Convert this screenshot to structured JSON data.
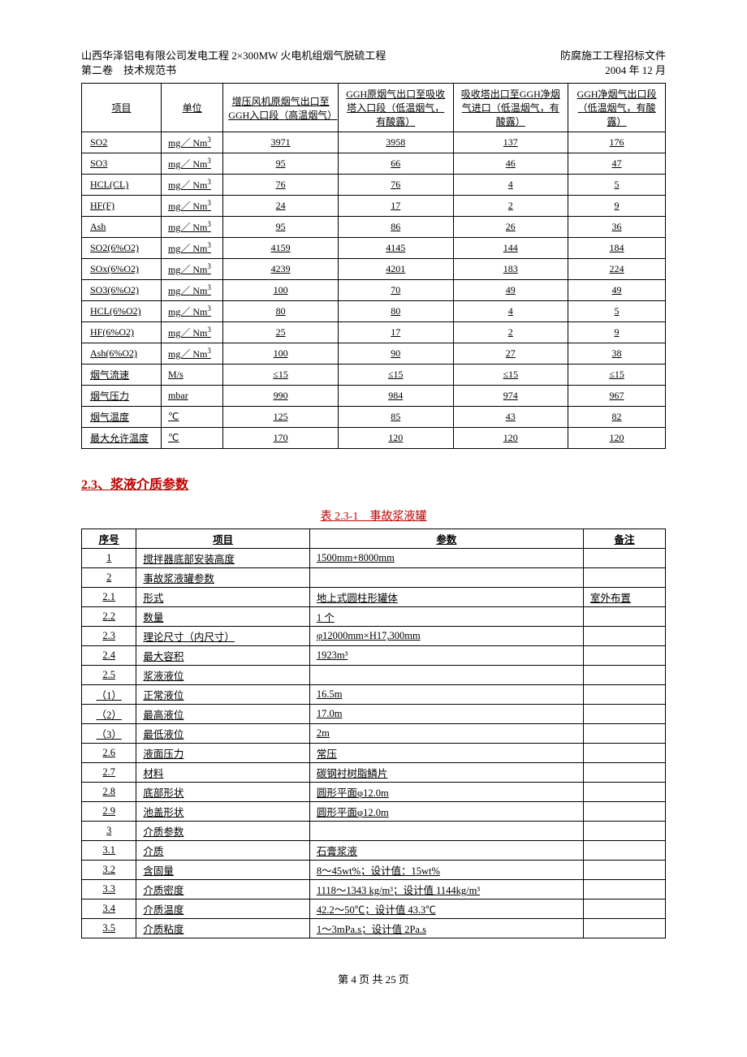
{
  "header": {
    "left_line1": "山西华泽铝电有限公司发电工程 2×300MW 火电机组烟气脱硫工程",
    "left_line2": "第二卷　技术规范书",
    "right_line1": "防腐施工工程招标文件",
    "right_line2": "2004 年 12 月"
  },
  "table1": {
    "headers": {
      "item": "项目",
      "unit": "单位",
      "col1": "增压风机原烟气出口至GGH入口段（高温烟气）",
      "col2": "GGH原烟气出口至吸收塔入口段（低温烟气，有酸露）",
      "col3": "吸收塔出口至GGH净烟气进口（低温烟气，有酸露）",
      "col4": "GGH净烟气出口段（低温烟气，有酸露）"
    },
    "unit_mgnm3": "mg／ Nm",
    "unit_ms": "M/s",
    "unit_mbar": "mbar",
    "unit_c": "℃",
    "rows": [
      {
        "item": "SO2",
        "unit": "mg／ Nm3",
        "v": [
          "3971",
          "3958",
          "137",
          "176"
        ]
      },
      {
        "item": "SO3",
        "unit": "mg／ Nm3",
        "v": [
          "95",
          "66",
          "46",
          "47"
        ]
      },
      {
        "item": "HCL(CL)",
        "unit": "mg／ Nm3",
        "v": [
          "76",
          "76",
          "4",
          "5"
        ]
      },
      {
        "item": "HF(F)",
        "unit": "mg／ Nm3",
        "v": [
          "24",
          "17",
          "2",
          "9"
        ]
      },
      {
        "item": "Ash",
        "unit": "mg／ Nm3",
        "v": [
          "95",
          "86",
          "26",
          "36"
        ]
      },
      {
        "item": "SO2(6%O2)",
        "unit": "mg／ Nm3",
        "v": [
          "4159",
          "4145",
          "144",
          "184"
        ]
      },
      {
        "item": "SOx(6%O2)",
        "unit": "mg／ Nm3",
        "v": [
          "4239",
          "4201",
          "183",
          "224"
        ]
      },
      {
        "item": "SO3(6%O2)",
        "unit": "mg／ Nm3",
        "v": [
          "100",
          "70",
          "49",
          "49"
        ]
      },
      {
        "item": "HCL(6%O2)",
        "unit": "mg／ Nm3",
        "v": [
          "80",
          "80",
          "4",
          "5"
        ]
      },
      {
        "item": "HF(6%O2)",
        "unit": "mg／ Nm3",
        "v": [
          "25",
          "17",
          "2",
          "9"
        ]
      },
      {
        "item": "Ash(6%O2)",
        "unit": "mg／ Nm3",
        "v": [
          "100",
          "90",
          "27",
          "38"
        ]
      },
      {
        "item": "烟气流速",
        "unit": "M/s",
        "v": [
          "≤15",
          "≤15",
          "≤15",
          "≤15"
        ]
      },
      {
        "item": "烟气压力",
        "unit": "mbar",
        "v": [
          "990",
          "984",
          "974",
          "967"
        ]
      },
      {
        "item": "烟气温度",
        "unit": "℃",
        "v": [
          "125",
          "85",
          "43",
          "82"
        ]
      },
      {
        "item": "最大允许温度",
        "unit": "℃",
        "v": [
          "170",
          "120",
          "120",
          "120"
        ]
      }
    ]
  },
  "section23": "2.3、浆液介质参数",
  "table2_caption": "表 2.3-1　事故浆液罐",
  "table2": {
    "headers": {
      "no": "序号",
      "item": "项目",
      "param": "参数",
      "note": "备注"
    },
    "rows": [
      {
        "no": "1",
        "item": "搅拌器底部安装高度",
        "param": "1500mm+8000mm",
        "note": ""
      },
      {
        "no": "2",
        "item": "事故浆液罐参数",
        "param": "",
        "note": ""
      },
      {
        "no": "2.1",
        "item": "形式",
        "param": "地上式圆柱形罐体",
        "note": "室外布置"
      },
      {
        "no": "2.2",
        "item": "数量",
        "param": "1 个",
        "note": ""
      },
      {
        "no": "2.3",
        "item": "理论尺寸（内尺寸）",
        "param": "φ12000mm×H17,300mm",
        "note": ""
      },
      {
        "no": "2.4",
        "item": "最大容积",
        "param": "1923m³",
        "note": ""
      },
      {
        "no": "2.5",
        "item": "浆液液位",
        "param": "",
        "note": ""
      },
      {
        "no": "（1）",
        "item": "正常液位",
        "param": "16.5m",
        "note": ""
      },
      {
        "no": "（2）",
        "item": "最高液位",
        "param": "17.0m",
        "note": ""
      },
      {
        "no": "（3）",
        "item": "最低液位",
        "param": "2m",
        "note": ""
      },
      {
        "no": "2.6",
        "item": "液面压力",
        "param": "常压",
        "note": ""
      },
      {
        "no": "2.7",
        "item": "材料",
        "param": "碳钢衬树脂鳞片",
        "note": ""
      },
      {
        "no": "2.8",
        "item": "底部形状",
        "param": "圆形平面φ12.0m",
        "note": ""
      },
      {
        "no": "2.9",
        "item": "池盖形状",
        "param": "圆形平面φ12.0m",
        "note": ""
      },
      {
        "no": "3",
        "item": "介质参数",
        "param": "",
        "note": ""
      },
      {
        "no": "3.1",
        "item": "介质",
        "param": "石膏浆液",
        "note": ""
      },
      {
        "no": "3.2",
        "item": "含固量",
        "param": "8～45wt%；设计值：15wt%",
        "note": ""
      },
      {
        "no": "3.3",
        "item": "介质密度",
        "param": "1118～1343 kg/m³；设计值 1144kg/m³",
        "note": ""
      },
      {
        "no": "3.4",
        "item": "介质温度",
        "param": "42.2～50℃；设计值 43.3℃",
        "note": ""
      },
      {
        "no": "3.5",
        "item": "介质粘度",
        "param": "1～3mPa.s；设计值 2Pa.s",
        "note": ""
      }
    ]
  },
  "footer": "第 4 页 共 25 页"
}
